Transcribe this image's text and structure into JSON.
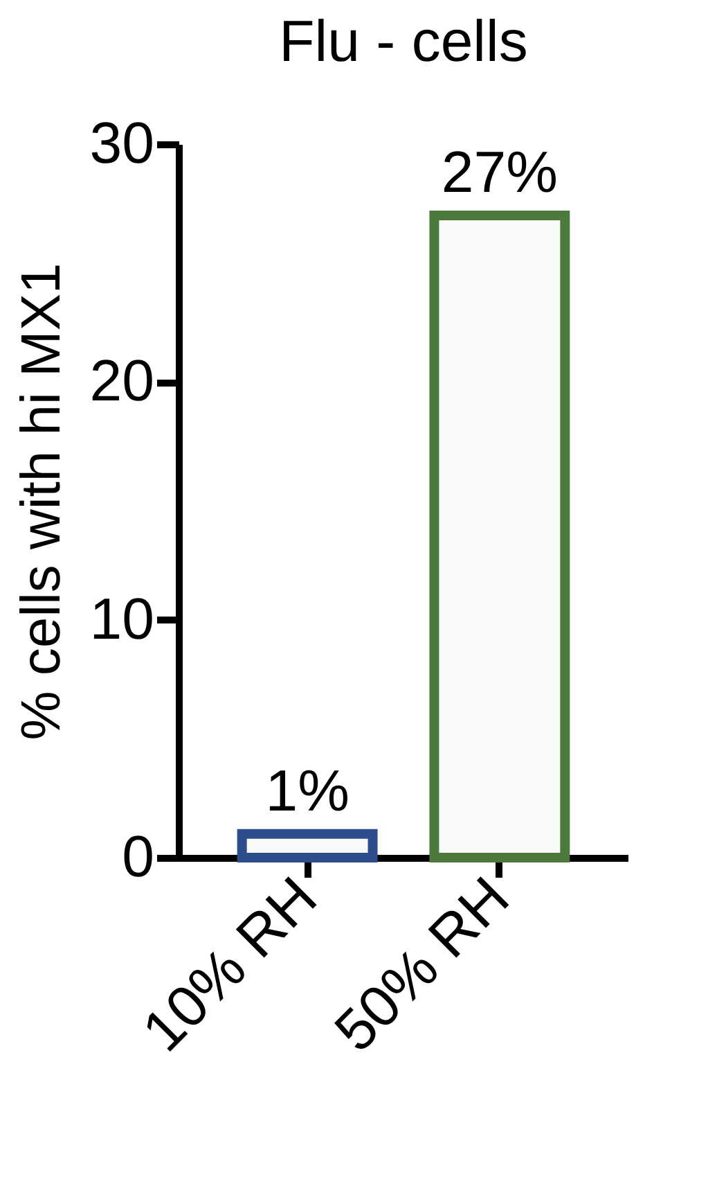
{
  "chart_data": {
    "type": "bar",
    "title": "Flu - cells",
    "ylabel": "% cells with hi MX1",
    "categories": [
      "10% RH",
      "50% RH"
    ],
    "values": [
      1,
      27
    ],
    "colors": [
      "#2e4d8c",
      "#4b7a3c"
    ],
    "value_labels": [
      "1%",
      "27%"
    ],
    "ylim": [
      0,
      30
    ],
    "yticks": [
      0,
      10,
      20,
      30
    ],
    "grid": false
  }
}
